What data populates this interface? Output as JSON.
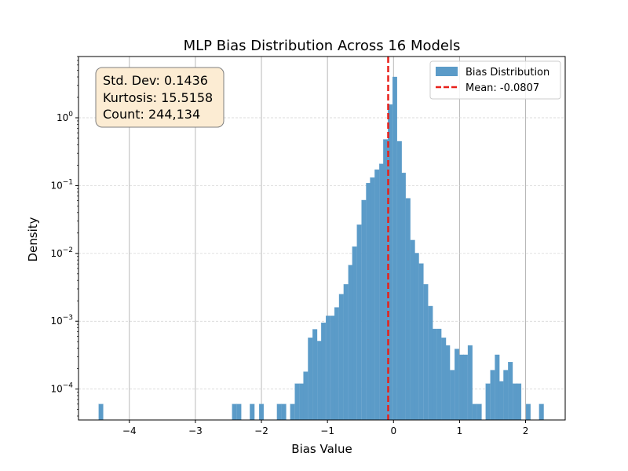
{
  "chart_data": {
    "type": "bar",
    "title": "MLP Bias Distribution Across 16 Models",
    "xlabel": "Bias Value",
    "ylabel": "Density",
    "xlim": [
      -4.77,
      2.6
    ],
    "ylim": [
      3.5e-05,
      8
    ],
    "yscale": "log",
    "x_ticks": [
      "−4",
      "−3",
      "−2",
      "−1",
      "0",
      "1",
      "2"
    ],
    "x_tick_values": [
      -4,
      -3,
      -2,
      -1,
      0,
      1,
      2
    ],
    "y_ticks": [
      {
        "base": "10",
        "exp": "−4",
        "value": 0.0001
      },
      {
        "base": "10",
        "exp": "−3",
        "value": 0.001
      },
      {
        "base": "10",
        "exp": "−2",
        "value": 0.01
      },
      {
        "base": "10",
        "exp": "−1",
        "value": 0.1
      },
      {
        "base": "10",
        "exp": "0",
        "value": 1
      }
    ],
    "grid": true,
    "legend_position": "top-right",
    "legend": [
      "Bias Distribution",
      "Mean: -0.0807"
    ],
    "mean": -0.0807,
    "bin_width": 0.0673,
    "bins": [
      {
        "x": -4.43,
        "density": 6e-05
      },
      {
        "x": -2.41,
        "density": 6e-05
      },
      {
        "x": -2.34,
        "density": 6e-05
      },
      {
        "x": -2.14,
        "density": 6e-05
      },
      {
        "x": -2.0,
        "density": 6e-05
      },
      {
        "x": -1.73,
        "density": 6e-05
      },
      {
        "x": -1.66,
        "density": 6e-05
      },
      {
        "x": -1.53,
        "density": 6e-05
      },
      {
        "x": -1.46,
        "density": 0.00012
      },
      {
        "x": -1.39,
        "density": 0.00012
      },
      {
        "x": -1.33,
        "density": 0.00018
      },
      {
        "x": -1.26,
        "density": 0.00057
      },
      {
        "x": -1.19,
        "density": 0.00076
      },
      {
        "x": -1.12,
        "density": 0.00051
      },
      {
        "x": -1.06,
        "density": 0.00095
      },
      {
        "x": -0.99,
        "density": 0.0012
      },
      {
        "x": -0.92,
        "density": 0.0012
      },
      {
        "x": -0.86,
        "density": 0.0016
      },
      {
        "x": -0.79,
        "density": 0.0025
      },
      {
        "x": -0.72,
        "density": 0.0035
      },
      {
        "x": -0.65,
        "density": 0.0067
      },
      {
        "x": -0.59,
        "density": 0.0126
      },
      {
        "x": -0.52,
        "density": 0.0265
      },
      {
        "x": -0.45,
        "density": 0.061
      },
      {
        "x": -0.38,
        "density": 0.109
      },
      {
        "x": -0.32,
        "density": 0.131
      },
      {
        "x": -0.25,
        "density": 0.172
      },
      {
        "x": -0.18,
        "density": 0.209
      },
      {
        "x": -0.12,
        "density": 0.48
      },
      {
        "x": -0.05,
        "density": 1.57
      },
      {
        "x": 0.02,
        "density": 4.0
      },
      {
        "x": 0.09,
        "density": 0.45
      },
      {
        "x": 0.15,
        "density": 0.154
      },
      {
        "x": 0.22,
        "density": 0.065
      },
      {
        "x": 0.29,
        "density": 0.0157
      },
      {
        "x": 0.35,
        "density": 0.0101
      },
      {
        "x": 0.42,
        "density": 0.0071
      },
      {
        "x": 0.49,
        "density": 0.0035
      },
      {
        "x": 0.56,
        "density": 0.00167
      },
      {
        "x": 0.62,
        "density": 0.00077
      },
      {
        "x": 0.69,
        "density": 0.00077
      },
      {
        "x": 0.76,
        "density": 0.00057
      },
      {
        "x": 0.82,
        "density": 0.00044
      },
      {
        "x": 0.89,
        "density": 0.00019
      },
      {
        "x": 0.96,
        "density": 0.00039
      },
      {
        "x": 1.03,
        "density": 0.00032
      },
      {
        "x": 1.09,
        "density": 0.00032
      },
      {
        "x": 1.16,
        "density": 0.00044
      },
      {
        "x": 1.23,
        "density": 6e-05
      },
      {
        "x": 1.3,
        "density": 6e-05
      },
      {
        "x": 1.43,
        "density": 0.00012
      },
      {
        "x": 1.5,
        "density": 0.00019
      },
      {
        "x": 1.57,
        "density": 0.00032
      },
      {
        "x": 1.63,
        "density": 0.00013
      },
      {
        "x": 1.7,
        "density": 0.00019
      },
      {
        "x": 1.77,
        "density": 0.00025
      },
      {
        "x": 1.84,
        "density": 0.00012
      },
      {
        "x": 1.9,
        "density": 0.00012
      },
      {
        "x": 2.04,
        "density": 6e-05
      },
      {
        "x": 2.24,
        "density": 6e-05
      }
    ],
    "stats_box": {
      "line1": "Std. Dev: 0.1436",
      "line2": "Kurtosis: 15.5158",
      "line3": "Count: 244,134"
    },
    "colors": {
      "bars": "#5b9bc8",
      "mean_line": "#e8201a",
      "stats_box_fill": "#fcecd3",
      "stats_box_edge": "#7f7f7f"
    }
  }
}
